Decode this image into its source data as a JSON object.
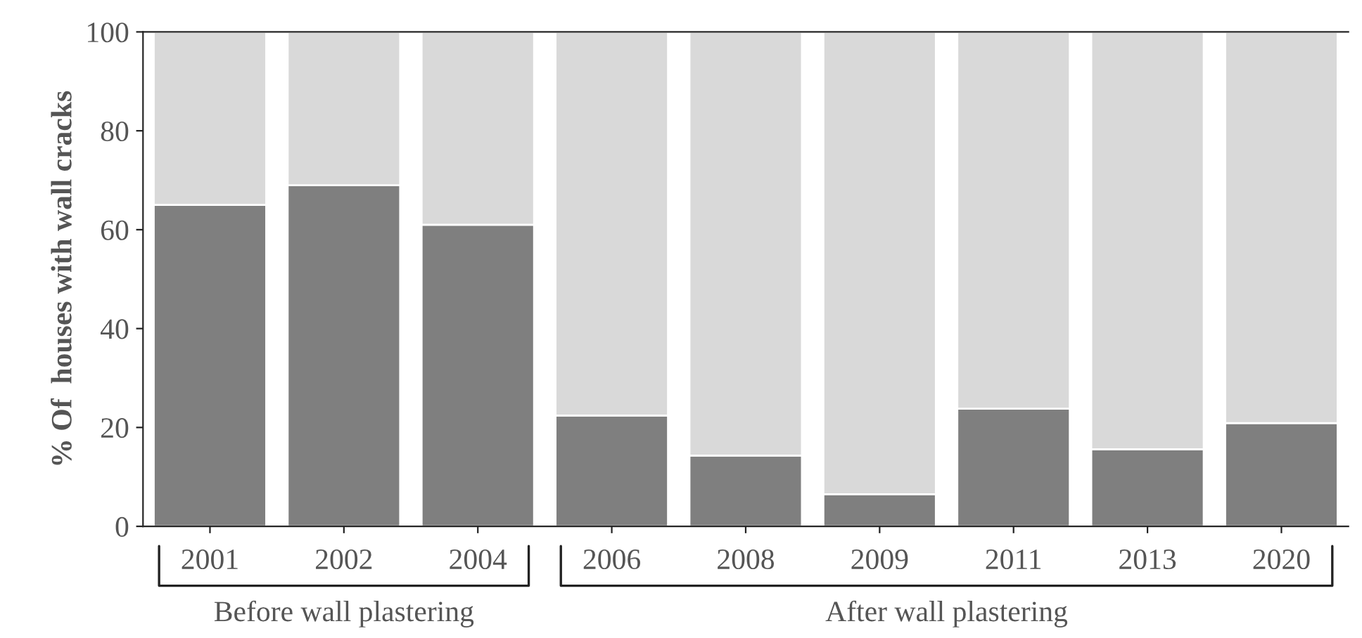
{
  "chart_data": {
    "type": "bar",
    "stacked": true,
    "ylabel": "% Of  houses with wall cracks",
    "categories": [
      "2001",
      "2002",
      "2004",
      "2006",
      "2008",
      "2009",
      "2011",
      "2013",
      "2020"
    ],
    "series": [
      {
        "color": "#7f7f7f",
        "values": [
          65,
          69,
          61,
          22.4,
          14.3,
          6.5,
          23.8,
          15.6,
          20.9
        ]
      },
      {
        "color": "#d9d9d9",
        "values": [
          35,
          31,
          39,
          77.6,
          85.7,
          93.5,
          76.2,
          84.4,
          79.1
        ]
      }
    ],
    "ylim": [
      0,
      100
    ],
    "yticks": [
      0,
      20,
      40,
      60,
      80,
      100
    ],
    "grid": false,
    "legend": false,
    "annotations": [
      "Before wall plastering",
      "After wall plastering"
    ]
  }
}
